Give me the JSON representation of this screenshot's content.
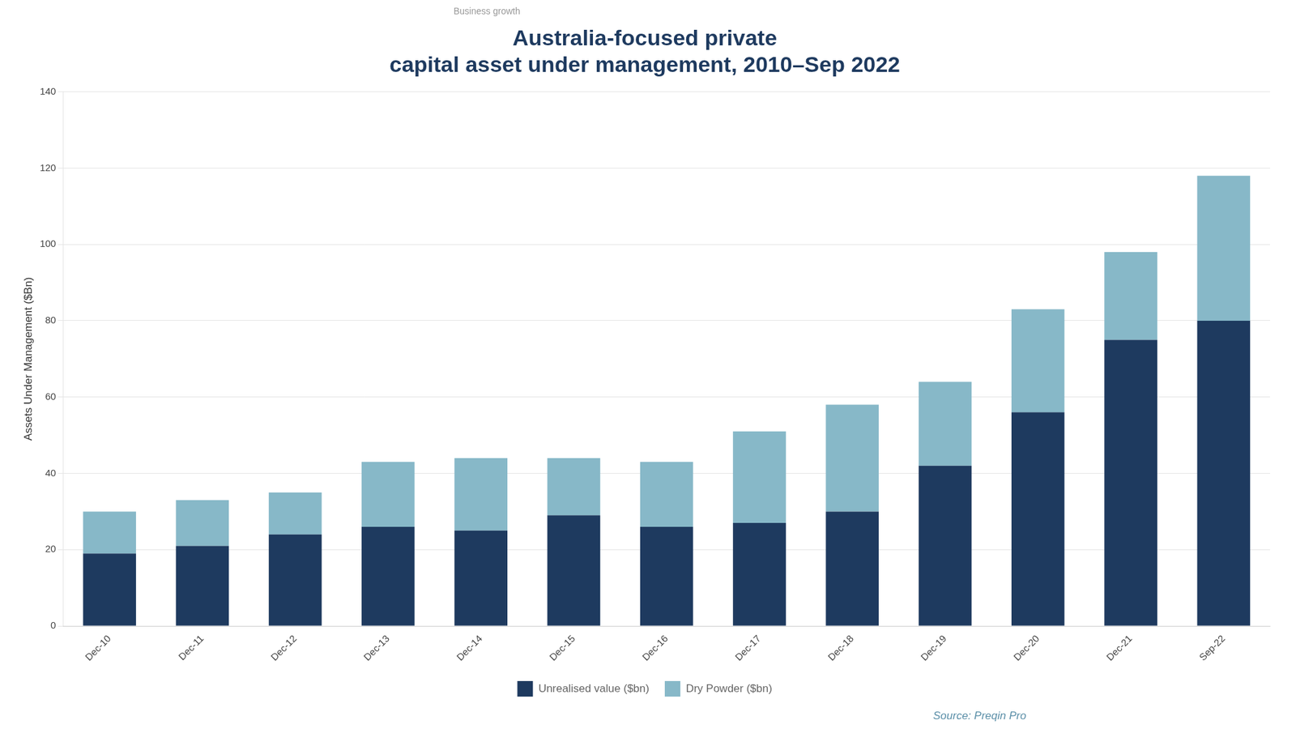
{
  "chart_data": {
    "type": "bar",
    "title": [
      "Australia-focused private",
      "capital asset under management, 2010–Sep 2022"
    ],
    "y_label": "Assets Under Management ($Bn)",
    "categories": [
      "Dec-10",
      "Dec-11",
      "Dec-12",
      "Dec-13",
      "Dec-14",
      "Dec-15",
      "Dec-16",
      "Dec-17",
      "Dec-18",
      "Dec-19",
      "Dec-20",
      "Dec-21",
      "Sep-22"
    ],
    "series": [
      {
        "name": "Unrealised value ($bn)",
        "color": "#1e3a5f",
        "values": [
          19,
          21,
          24,
          26,
          25,
          29,
          26,
          27,
          30,
          42,
          56,
          75,
          80
        ]
      },
      {
        "name": "Dry Powder ($bn)",
        "color": "#87b8c8",
        "values": [
          11,
          12,
          11,
          17,
          19,
          15,
          17,
          24,
          28,
          22,
          27,
          23,
          38
        ]
      }
    ],
    "stacked": true,
    "ylim": [
      0,
      140
    ],
    "yticks": [
      0,
      20,
      40,
      60,
      80,
      100,
      120,
      140
    ],
    "grid": true,
    "legend": "bottom",
    "annotations": [
      "Business growth",
      "Source: Preqin Pro"
    ]
  }
}
